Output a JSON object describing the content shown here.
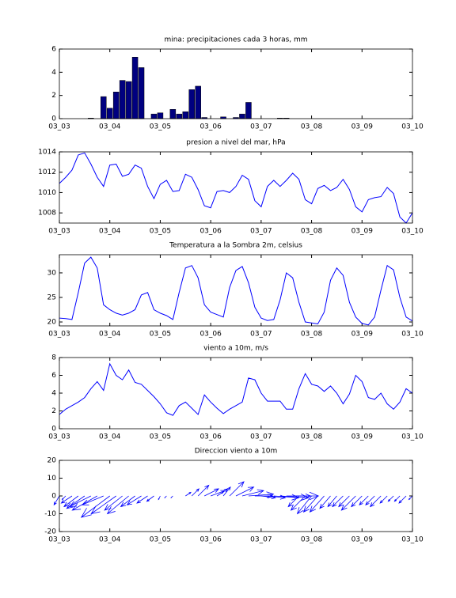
{
  "chart_data": [
    {
      "type": "bar",
      "title": "mina: precipitaciones cada 3 horas, mm",
      "color": "#000080",
      "categories": [
        "03_03",
        null,
        null,
        null,
        null,
        null,
        null,
        null,
        "03_04",
        null,
        null,
        null,
        null,
        null,
        null,
        null,
        "03_05",
        null,
        null,
        null,
        null,
        null,
        null,
        null,
        "03_06",
        null,
        null,
        null,
        null,
        null,
        null,
        null,
        "03_07",
        null,
        null,
        null,
        null,
        null,
        null,
        null,
        "03_08",
        null,
        null,
        null,
        null,
        null,
        null,
        null,
        "03_09",
        null,
        null,
        null,
        null,
        null,
        null,
        null,
        "03_10"
      ],
      "values": [
        0,
        0,
        0,
        0,
        0,
        0.05,
        0,
        1.9,
        0.9,
        2.3,
        3.3,
        3.2,
        5.3,
        4.4,
        0,
        0.4,
        0.5,
        0,
        0.8,
        0.4,
        0.6,
        2.5,
        2.8,
        0.1,
        0,
        0,
        0.15,
        0,
        0.1,
        0.4,
        1.4,
        0,
        0,
        0,
        0,
        0.05,
        0.05,
        0,
        0,
        0,
        0,
        0,
        0,
        0,
        0,
        0,
        0,
        0,
        0,
        0,
        0,
        0,
        0,
        0,
        0,
        0,
        0
      ],
      "ylim": [
        0,
        6
      ],
      "yticks": [
        0,
        2,
        4,
        6
      ]
    },
    {
      "type": "line",
      "title": "presion a nivel del mar, hPa",
      "color": "#0000ff",
      "categories": [
        "03_03",
        null,
        null,
        null,
        null,
        null,
        null,
        null,
        "03_04",
        null,
        null,
        null,
        null,
        null,
        null,
        null,
        "03_05",
        null,
        null,
        null,
        null,
        null,
        null,
        null,
        "03_06",
        null,
        null,
        null,
        null,
        null,
        null,
        null,
        "03_07",
        null,
        null,
        null,
        null,
        null,
        null,
        null,
        "03_08",
        null,
        null,
        null,
        null,
        null,
        null,
        null,
        "03_09",
        null,
        null,
        null,
        null,
        null,
        null,
        null,
        "03_10"
      ],
      "values": [
        1010.9,
        1011.5,
        1012.2,
        1013.7,
        1013.9,
        1012.8,
        1011.5,
        1010.6,
        1012.7,
        1012.8,
        1011.6,
        1011.8,
        1012.7,
        1012.4,
        1010.6,
        1009.4,
        1010.8,
        1011.2,
        1010.1,
        1010.2,
        1011.8,
        1011.5,
        1010.3,
        1008.7,
        1008.5,
        1010.1,
        1010.2,
        1010.0,
        1010.6,
        1011.7,
        1011.3,
        1009.2,
        1008.6,
        1010.6,
        1011.2,
        1010.6,
        1011.2,
        1011.9,
        1011.3,
        1009.3,
        1008.9,
        1010.4,
        1010.7,
        1010.2,
        1010.5,
        1011.3,
        1010.3,
        1008.6,
        1008.1,
        1009.3,
        1009.5,
        1009.6,
        1010.5,
        1009.9,
        1007.6,
        1007.0,
        1008.0
      ],
      "ylim": [
        1007,
        1014
      ],
      "yticks": [
        1008,
        1010,
        1012,
        1014
      ]
    },
    {
      "type": "line",
      "title": "Temperatura a la Sombra 2m, celsius",
      "color": "#0000ff",
      "categories": [
        "03_03",
        null,
        null,
        null,
        null,
        null,
        null,
        null,
        "03_04",
        null,
        null,
        null,
        null,
        null,
        null,
        null,
        "03_05",
        null,
        null,
        null,
        null,
        null,
        null,
        null,
        "03_06",
        null,
        null,
        null,
        null,
        null,
        null,
        null,
        "03_07",
        null,
        null,
        null,
        null,
        null,
        null,
        null,
        "03_08",
        null,
        null,
        null,
        null,
        null,
        null,
        null,
        "03_09",
        null,
        null,
        null,
        null,
        null,
        null,
        null,
        "03_10"
      ],
      "values": [
        20.8,
        20.7,
        20.5,
        26,
        32,
        33.2,
        31,
        23.5,
        22.5,
        21.8,
        21.4,
        21.8,
        22.5,
        25.5,
        26,
        22.5,
        21.8,
        21.3,
        20.5,
        26,
        31,
        31.5,
        29,
        23.5,
        22,
        21.5,
        21,
        27,
        30.5,
        31.3,
        28,
        23,
        20.8,
        20.3,
        20.5,
        24.5,
        30,
        29,
        24,
        20,
        19.8,
        19.6,
        22,
        28.5,
        31,
        29.5,
        24,
        21,
        19.7,
        19.4,
        21,
        26.5,
        31.5,
        30.6,
        25,
        21,
        20.2
      ],
      "ylim": [
        19.2,
        33.7
      ],
      "yticks": [
        20,
        25,
        30
      ]
    },
    {
      "type": "line",
      "title": "viento a 10m, m/s",
      "color": "#0000ff",
      "categories": [
        "03_03",
        null,
        null,
        null,
        null,
        null,
        null,
        null,
        "03_04",
        null,
        null,
        null,
        null,
        null,
        null,
        null,
        "03_05",
        null,
        null,
        null,
        null,
        null,
        null,
        null,
        "03_06",
        null,
        null,
        null,
        null,
        null,
        null,
        null,
        "03_07",
        null,
        null,
        null,
        null,
        null,
        null,
        null,
        "03_08",
        null,
        null,
        null,
        null,
        null,
        null,
        null,
        "03_09",
        null,
        null,
        null,
        null,
        null,
        null,
        null,
        "03_10"
      ],
      "values": [
        1.6,
        2.2,
        2.6,
        3.0,
        3.5,
        4.5,
        5.3,
        4.3,
        7.3,
        6.0,
        5.5,
        6.6,
        5.2,
        5.0,
        4.3,
        3.6,
        2.8,
        1.8,
        1.5,
        2.6,
        3.0,
        2.3,
        1.6,
        3.8,
        3.0,
        2.3,
        1.7,
        2.2,
        2.6,
        3.0,
        5.7,
        5.5,
        4.0,
        3.1,
        3.1,
        3.1,
        2.2,
        2.2,
        4.5,
        6.2,
        5.0,
        4.8,
        4.2,
        4.8,
        4.0,
        2.8,
        3.9,
        6.0,
        5.3,
        3.5,
        3.3,
        4.0,
        2.8,
        2.2,
        3.0,
        4.5,
        4.0
      ],
      "ylim": [
        0,
        8
      ],
      "yticks": [
        0,
        2,
        4,
        6,
        8
      ]
    },
    {
      "type": "quiver",
      "title": "Direccion viento a 10m",
      "color": "#0000ff",
      "categories": [
        "03_03",
        null,
        null,
        null,
        null,
        null,
        null,
        null,
        "03_04",
        null,
        null,
        null,
        null,
        null,
        null,
        null,
        "03_05",
        null,
        null,
        null,
        null,
        null,
        null,
        null,
        "03_06",
        null,
        null,
        null,
        null,
        null,
        null,
        null,
        "03_07",
        null,
        null,
        null,
        null,
        null,
        null,
        null,
        "03_08",
        null,
        null,
        null,
        null,
        null,
        null,
        null,
        "03_09",
        null,
        null,
        null,
        null,
        null,
        null,
        null,
        "03_10"
      ],
      "u": [
        -3,
        -2,
        -6,
        -8,
        -10,
        -12,
        -14,
        -12,
        -16,
        -14,
        -10,
        -12,
        -8,
        -8,
        -6,
        -4,
        -1,
        -1,
        -1,
        0,
        3,
        4,
        6,
        8,
        8,
        6,
        4,
        8,
        10,
        12,
        14,
        10,
        8,
        10,
        14,
        16,
        18,
        10,
        -6,
        -8,
        -8,
        -8,
        -8,
        -6,
        -5,
        -6,
        -6,
        -8,
        -6,
        -5,
        -5,
        -6,
        -4,
        -3,
        -3,
        -4,
        -2
      ],
      "v": [
        -5,
        -2,
        -4,
        -6,
        -7,
        -6,
        -8,
        -5,
        -12,
        -10,
        -8,
        -10,
        -6,
        -5,
        -4,
        -3,
        -2,
        -1,
        -1,
        0,
        2,
        4,
        6,
        4,
        3,
        4,
        5,
        8,
        5,
        3,
        1,
        0,
        -1,
        -1,
        -1,
        -1,
        0,
        0,
        -6,
        -8,
        -10,
        -9,
        -9,
        -7,
        -6,
        -6,
        -6,
        -8,
        -6,
        -5,
        -5,
        -6,
        -4,
        -3,
        -3,
        -4,
        -2
      ],
      "ylim": [
        -20,
        20
      ],
      "yticks": [
        -20,
        -10,
        0,
        10,
        20
      ]
    }
  ]
}
